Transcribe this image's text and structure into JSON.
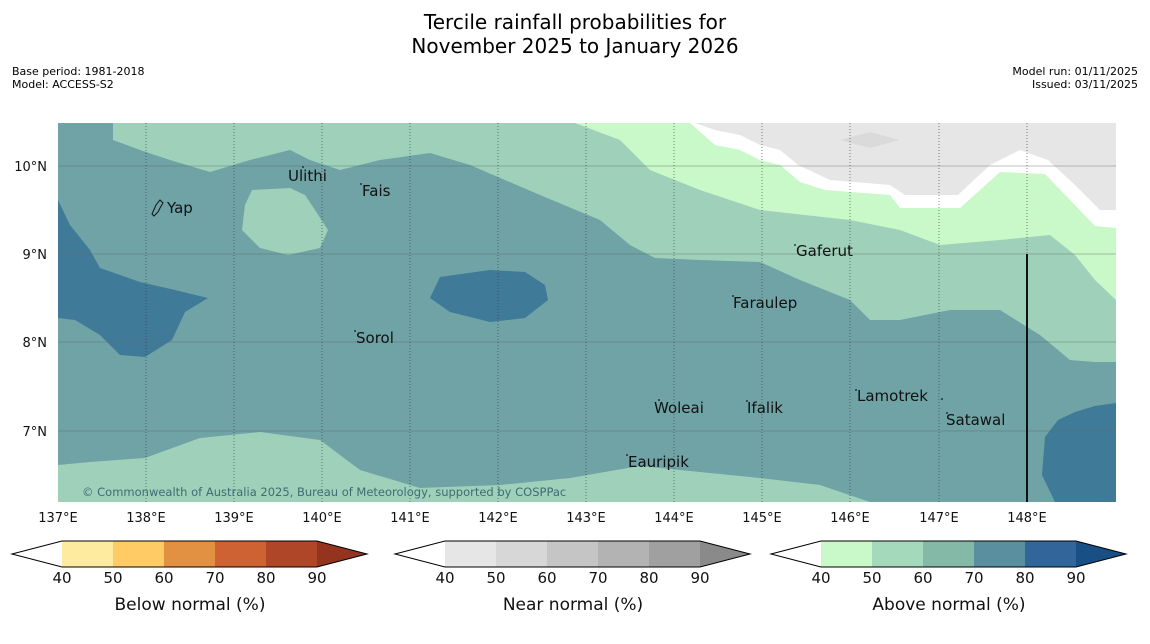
{
  "title": {
    "line1": "Tercile rainfall probabilities for",
    "line2": "November 2025 to January 2026"
  },
  "meta": {
    "base_period": "Base period: 1981-2018",
    "model": "Model: ACCESS-S2",
    "model_run": "Model run: 01/11/2025",
    "issued": "Issued: 03/11/2025"
  },
  "map": {
    "copyright": "© Commonwealth of Australia 2025, Bureau of Meteorology, supported by COSPPac",
    "lat_labels": [
      "10°N",
      "9°N",
      "8°N",
      "7°N"
    ],
    "lon_labels": [
      "137°E",
      "138°E",
      "139°E",
      "140°E",
      "141°E",
      "142°E",
      "143°E",
      "144°E",
      "145°E",
      "146°E",
      "147°E",
      "148°E"
    ],
    "places": [
      {
        "id": "yap",
        "name": "Yap"
      },
      {
        "id": "ulithi",
        "name": "Ulithi"
      },
      {
        "id": "fais",
        "name": "Fais"
      },
      {
        "id": "gaferut",
        "name": "Gaferut"
      },
      {
        "id": "faraulep",
        "name": "Faraulep"
      },
      {
        "id": "sorol",
        "name": "Sorol"
      },
      {
        "id": "woleai",
        "name": "Woleai"
      },
      {
        "id": "ifalik",
        "name": "Ifalik"
      },
      {
        "id": "lamotrek",
        "name": "Lamotrek"
      },
      {
        "id": "satawal",
        "name": "Satawal"
      },
      {
        "id": "eauripik",
        "name": "Eauripik"
      }
    ],
    "colors": {
      "above_50": "#9fd1ba",
      "above_60": "#6fa3a6",
      "above_70": "#3f7a98",
      "above_40": "#c9f8c9",
      "near_40": "#e6e6e6",
      "white": "#ffffff"
    }
  },
  "legends": [
    {
      "id": "below",
      "label": "Below normal (%)",
      "ticks": [
        "40",
        "50",
        "60",
        "70",
        "80",
        "90"
      ],
      "colors": [
        "#ffffff",
        "#ffeba0",
        "#fecb64",
        "#e29142",
        "#cf6233",
        "#af4628",
        "#94331e"
      ]
    },
    {
      "id": "near",
      "label": "Near normal (%)",
      "ticks": [
        "40",
        "50",
        "60",
        "70",
        "80",
        "90"
      ],
      "colors": [
        "#ffffff",
        "#e6e6e6",
        "#d7d7d7",
        "#c5c5c5",
        "#b3b3b3",
        "#a0a0a0",
        "#8a8a8a"
      ]
    },
    {
      "id": "above",
      "label": "Above normal (%)",
      "ticks": [
        "40",
        "50",
        "60",
        "70",
        "80",
        "90"
      ],
      "colors": [
        "#ffffff",
        "#c9f8c9",
        "#a4d9bb",
        "#84b9a7",
        "#5a8fa0",
        "#32659a",
        "#184f84"
      ]
    }
  ]
}
